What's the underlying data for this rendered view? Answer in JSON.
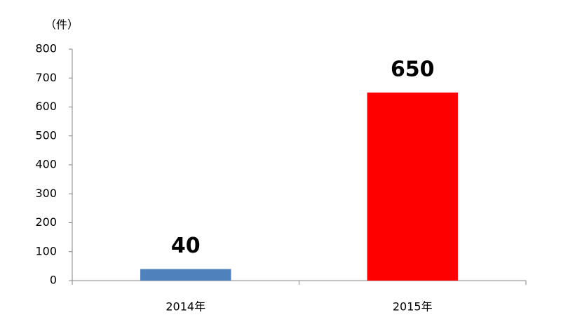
{
  "chart_data": {
    "type": "bar",
    "y_label": "（件）",
    "categories": [
      "2014年",
      "2015年"
    ],
    "values": [
      40,
      650
    ],
    "colors": [
      "#4f81bd",
      "#ff0000"
    ],
    "ylim": [
      0,
      800
    ],
    "yticks": [
      0,
      100,
      200,
      300,
      400,
      500,
      600,
      700,
      800
    ],
    "grid": false
  }
}
